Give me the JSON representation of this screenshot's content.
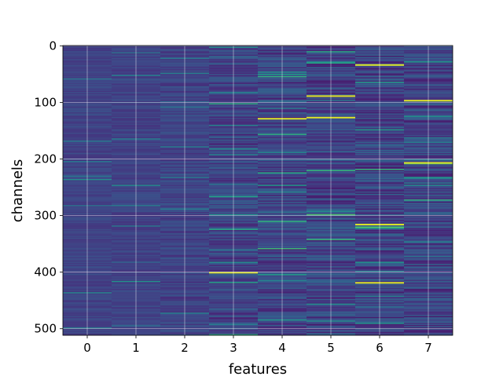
{
  "chart_data": {
    "type": "heatmap",
    "title": "",
    "xlabel": "features",
    "ylabel": "channels",
    "x_ticks": [
      "0",
      "1",
      "2",
      "3",
      "4",
      "5",
      "6",
      "7"
    ],
    "y_ticks": [
      "0",
      "100",
      "200",
      "300",
      "400",
      "500"
    ],
    "xlim": [
      -0.5,
      7.5
    ],
    "ylim": [
      511.5,
      -0.5
    ],
    "y_inverted": true,
    "n_channels": 512,
    "n_features": 8,
    "grid": true,
    "colormap": "viridis",
    "colors": {
      "background": "#3e4a89",
      "grid": "#ffffff",
      "axes_edge": "#000000"
    },
    "column_noise_level": [
      0.18,
      0.2,
      0.28,
      0.42,
      0.45,
      0.5,
      0.52,
      0.48
    ],
    "bright_streaks": [
      {
        "feature": 5,
        "channel": 88
      },
      {
        "feature": 5,
        "channel": 126
      },
      {
        "feature": 6,
        "channel": 33
      },
      {
        "feature": 6,
        "channel": 315
      },
      {
        "feature": 6,
        "channel": 418
      },
      {
        "feature": 7,
        "channel": 96
      },
      {
        "feature": 7,
        "channel": 206
      },
      {
        "feature": 4,
        "channel": 128
      },
      {
        "feature": 3,
        "channel": 400
      }
    ]
  }
}
